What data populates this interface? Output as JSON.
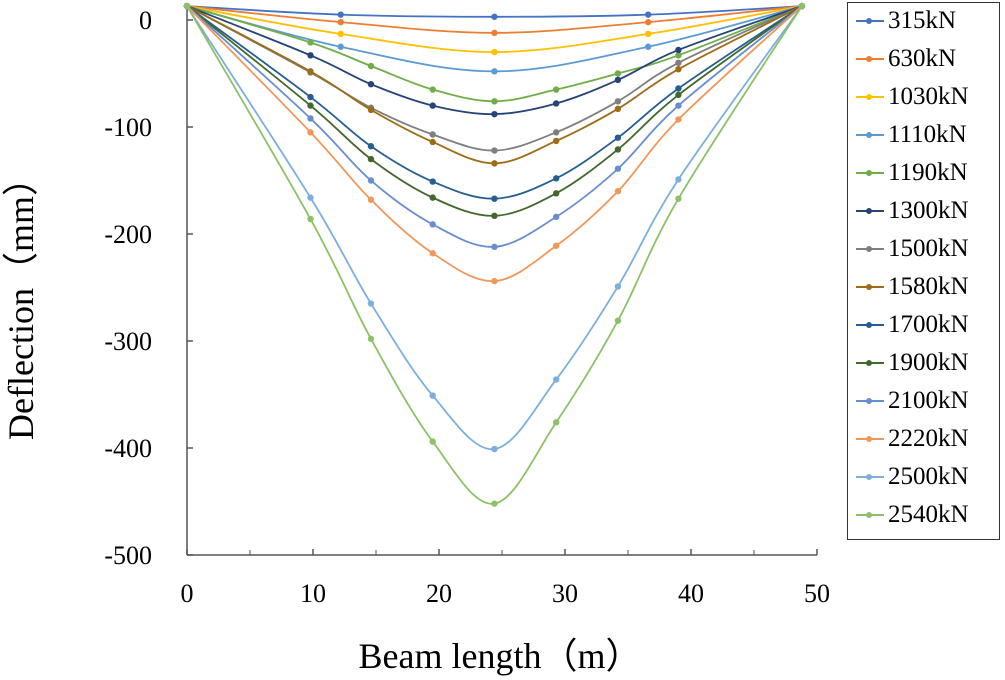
{
  "chart_data": {
    "type": "line",
    "title": "",
    "xlabel": "Beam length（m）",
    "ylabel": "Deflection（mm）",
    "xlim": [
      0,
      50
    ],
    "ylim": [
      -500,
      15
    ],
    "x_ticks": [
      "0",
      "10",
      "20",
      "30",
      "40",
      "50"
    ],
    "y_ticks": [
      "0",
      "-100",
      "-200",
      "-300",
      "-400",
      "-500"
    ],
    "legend_position": "right",
    "series": [
      {
        "name": "315kN",
        "color": "#4472C4",
        "x": [
          0,
          12.2,
          24.4,
          36.6,
          48.8
        ],
        "y": [
          13,
          5,
          3,
          5,
          13
        ]
      },
      {
        "name": "630kN",
        "color": "#ED7D31",
        "x": [
          0,
          12.2,
          24.4,
          36.6,
          48.8
        ],
        "y": [
          13,
          -2,
          -12,
          -2,
          13
        ]
      },
      {
        "name": "1030kN",
        "color": "#FFC000",
        "x": [
          0,
          12.2,
          24.4,
          36.6,
          48.8
        ],
        "y": [
          13,
          -13,
          -30,
          -13,
          13
        ]
      },
      {
        "name": "1110kN",
        "color": "#5B9BD5",
        "x": [
          0,
          12.2,
          24.4,
          36.6,
          48.8
        ],
        "y": [
          13,
          -25,
          -48,
          -25,
          13
        ]
      },
      {
        "name": "1190kN",
        "color": "#70AD47",
        "x": [
          0,
          9.8,
          14.6,
          19.5,
          24.4,
          29.3,
          34.2,
          39.0,
          48.8
        ],
        "y": [
          13,
          -21,
          -43,
          -65,
          -76,
          -65,
          -50,
          -33,
          13
        ]
      },
      {
        "name": "1300kN",
        "color": "#264478",
        "x": [
          0,
          9.8,
          14.6,
          19.5,
          24.4,
          29.3,
          34.2,
          39.0,
          48.8
        ],
        "y": [
          13,
          -33,
          -60,
          -80,
          -88,
          -78,
          -56,
          -28,
          13
        ]
      },
      {
        "name": "1500kN",
        "color": "#7F7F7F",
        "x": [
          0,
          9.8,
          14.6,
          19.5,
          24.4,
          29.3,
          34.2,
          39.0,
          48.8
        ],
        "y": [
          13,
          -49,
          -82,
          -107,
          -122,
          -105,
          -76,
          -40,
          13
        ]
      },
      {
        "name": "1580kN",
        "color": "#9E6B16",
        "x": [
          0,
          9.8,
          14.6,
          19.5,
          24.4,
          29.3,
          34.2,
          39.0,
          48.8
        ],
        "y": [
          13,
          -48,
          -84,
          -114,
          -134,
          -113,
          -83,
          -46,
          13
        ]
      },
      {
        "name": "1700kN",
        "color": "#255E91",
        "x": [
          0,
          9.8,
          14.6,
          19.5,
          24.4,
          29.3,
          34.2,
          39.0,
          48.8
        ],
        "y": [
          13,
          -72,
          -118,
          -151,
          -167,
          -148,
          -110,
          -64,
          13
        ]
      },
      {
        "name": "1900kN",
        "color": "#43682B",
        "x": [
          0,
          9.8,
          14.6,
          19.5,
          24.4,
          29.3,
          34.2,
          39.0,
          48.8
        ],
        "y": [
          13,
          -80,
          -130,
          -166,
          -183,
          -162,
          -121,
          -70,
          13
        ]
      },
      {
        "name": "2100kN",
        "color": "#698ED0",
        "x": [
          0,
          9.8,
          14.6,
          19.5,
          24.4,
          29.3,
          34.2,
          39.0,
          48.8
        ],
        "y": [
          13,
          -92,
          -150,
          -191,
          -212,
          -184,
          -139,
          -80,
          13
        ]
      },
      {
        "name": "2220kN",
        "color": "#F1975A",
        "x": [
          0,
          9.8,
          14.6,
          19.5,
          24.4,
          29.3,
          34.2,
          39.0,
          48.8
        ],
        "y": [
          13,
          -105,
          -168,
          -218,
          -244,
          -211,
          -160,
          -93,
          13
        ]
      },
      {
        "name": "2500kN",
        "color": "#7CAFDD",
        "x": [
          0,
          9.8,
          14.6,
          19.5,
          24.4,
          29.3,
          34.2,
          39.0,
          48.8
        ],
        "y": [
          13,
          -166,
          -265,
          -351,
          -401,
          -336,
          -249,
          -149,
          13
        ]
      },
      {
        "name": "2540kN",
        "color": "#8CC168",
        "x": [
          0,
          9.8,
          14.6,
          19.5,
          24.4,
          29.3,
          34.2,
          39.0,
          48.8
        ],
        "y": [
          13,
          -186,
          -298,
          -394,
          -452,
          -376,
          -281,
          -167,
          13
        ]
      }
    ]
  }
}
